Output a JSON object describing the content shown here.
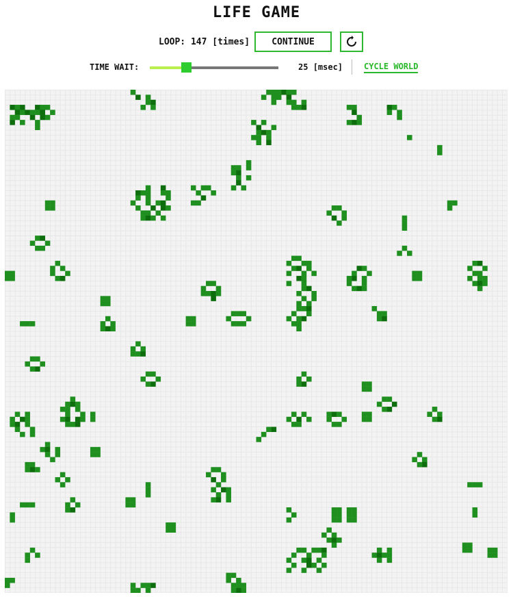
{
  "title": "LIFE GAME",
  "controls": {
    "loop_label": "LOOP:",
    "loop_count": "147",
    "loop_unit": "[times]",
    "continue_label": "CONTINUE",
    "reset_icon": "rotate-icon",
    "time_wait_label": "TIME WAIT:",
    "time_wait_value": "25",
    "time_wait_unit": "[msec]",
    "time_wait_fraction": 0.28,
    "cycle_world_label": "CYCLE WORLD"
  },
  "colors": {
    "accent": "#2fb82f",
    "cell_live": "#1f8f1f",
    "cell_dark": "#0e6e0e",
    "board_bg": "#f3f3f3",
    "slider_fill": "#b9ef4e",
    "slider_thumb": "#2ecc2e"
  },
  "board": {
    "columns": 100,
    "rows": 100,
    "patterns": [
      [
        1,
        3,
        "oxo..oxx|.oxoxxo.x|xx..o.ox.|o.x..x...|.....x.."
      ],
      [
        25,
        0,
        "x...|.o.x|...xo|..x.x"
      ],
      [
        51,
        0,
        ".xxxoxx|x.xx.o.|..x..xx.x|......xxo"
      ],
      [
        68,
        3,
        "xx|.o|..x|xox"
      ],
      [
        76,
        3,
        "ox|x.x|..x"
      ],
      [
        80,
        9,
        "x"
      ],
      [
        86,
        11,
        "x|x"
      ],
      [
        49,
        6,
        "x.x|.o..x|.xox|xx.x|.x.o"
      ],
      [
        8,
        22,
        "xx|xx"
      ],
      [
        45,
        14,
        "...x.|xx.x|xo..|.x.x|.o|x.x"
      ],
      [
        25,
        19,
        "...x..o.|.oxx..xx|.x.x...x|x..x.xo.|.x..o.ox|..xx.x..|..xox.x."
      ],
      [
        37,
        19,
        "x.xx|.x..x|..o.|xx.."
      ],
      [
        88,
        22,
        "xx|x"
      ],
      [
        64,
        23,
        ".xx|x..x|.o.x|..x"
      ],
      [
        79,
        25,
        "x|x|x"
      ],
      [
        5,
        29,
        ".xo.|x..x|.xx."
      ],
      [
        9,
        34,
        ".x|x.x|x..x|.xo"
      ],
      [
        0,
        36,
        "xx|xx"
      ],
      [
        56,
        33,
        ".xx.|x..xx|.xo.x|x..x.x|..ox.|x..x"
      ],
      [
        58,
        39,
        ".xo|x..x|.x.x|x.x"
      ],
      [
        68,
        35,
        "..ox|.x..x|xo.x|x..x|.xox"
      ],
      [
        78,
        31,
        ".x|x.x"
      ],
      [
        81,
        36,
        "xx|xx"
      ],
      [
        92,
        34,
        ".xo|x..x|.xx.|x.xx|.xox|..x"
      ],
      [
        39,
        38,
        ".xx|x..x|xxox|..o"
      ],
      [
        19,
        41,
        "xx|xx"
      ],
      [
        36,
        45,
        "xx|xx"
      ],
      [
        19,
        45,
        ".x|x.x|xox"
      ],
      [
        3,
        46,
        "xxx"
      ],
      [
        44,
        44,
        ".xxx.|x...x|.xxx."
      ],
      [
        56,
        43,
        "..xxo|.x..x|x.xo.|.xx..|..x"
      ],
      [
        73,
        43,
        "x.|.xx|.xo"
      ],
      [
        25,
        50,
        ".x|x.x|xxo"
      ],
      [
        4,
        53,
        ".xx|x..x|.xo"
      ],
      [
        27,
        56,
        ".xx|x..x|.xo"
      ],
      [
        58,
        56,
        ".x|x.x|xo"
      ],
      [
        71,
        58,
        "xx|xx"
      ],
      [
        74,
        61,
        ".xx|x..o|.xo"
      ],
      [
        1,
        64,
        ".x.x|x.ox.|xo.x.|.x..x|..x.x"
      ],
      [
        11,
        61,
        "..x.|.xox.|xx.x.|.x..x|xo.ox|.xxo"
      ],
      [
        17,
        64,
        "x|x"
      ],
      [
        56,
        64,
        ".x.x|x.o.x|.xx."
      ],
      [
        64,
        64,
        "xox|x..x|.xx"
      ],
      [
        71,
        64,
        "xx|xx"
      ],
      [
        84,
        63,
        ".x.|x.x|.xo"
      ],
      [
        50,
        67,
        "..xo|.x..|x..."
      ],
      [
        7,
        70,
        ".x.|xo.x|.x.x|..x"
      ],
      [
        17,
        71,
        "xx|xx"
      ],
      [
        81,
        72,
        ".x.|x.x|.xo"
      ],
      [
        4,
        74,
        "xx.|xox"
      ],
      [
        10,
        76,
        ".x.|x.x|.x"
      ],
      [
        40,
        75,
        ".xx.|x..x|.o.x|..x|.x.ox|..x.x|.xo.x"
      ],
      [
        28,
        78,
        "x|x|x"
      ],
      [
        24,
        81,
        "xx|xx"
      ],
      [
        3,
        82,
        "xxx"
      ],
      [
        12,
        81,
        ".x|x.x|xo"
      ],
      [
        2,
        83,
        "."
      ],
      [
        1,
        84,
        "x|x"
      ],
      [
        56,
        83,
        "x|.x|x"
      ],
      [
        65,
        83,
        "xx.xx|xx.xx|xx.xx"
      ],
      [
        92,
        78,
        "xxx"
      ],
      [
        93,
        83,
        "x|x"
      ],
      [
        32,
        86,
        "xx|xx"
      ],
      [
        63,
        87,
        ".x..|x.x.|.xox|..x."
      ],
      [
        4,
        91,
        ".x|x.x|x"
      ],
      [
        56,
        91,
        "..xx.xxo|.x..x..x|x..xo.x|.x..ox.x|x..x..x."
      ],
      [
        72,
        91,
        "..x.x|.xoxx|..x.x"
      ],
      [
        91,
        90,
        "xx|xx"
      ],
      [
        96,
        91,
        "xx|xx"
      ],
      [
        0,
        97,
        "xx|x."
      ],
      [
        44,
        96,
        "xx..|x.x.|.xxx|.xox"
      ],
      [
        25,
        98,
        "x.xxo|xx.x."
      ]
    ]
  }
}
